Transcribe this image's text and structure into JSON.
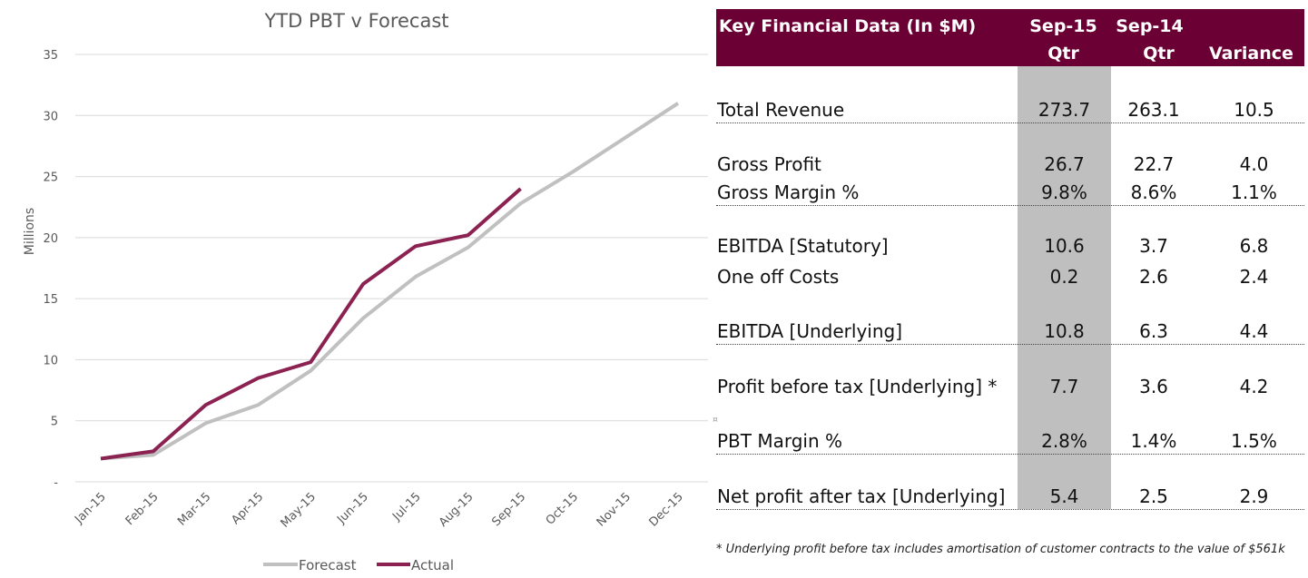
{
  "chart_data": {
    "type": "line",
    "title": "YTD PBT v Forecast",
    "ylabel": "Millions",
    "xlabel": "",
    "categories": [
      "Jan-15",
      "Feb-15",
      "Mar-15",
      "Apr-15",
      "May-15",
      "Jun-15",
      "Jul-15",
      "Aug-15",
      "Sep-15",
      "Oct-15",
      "Nov-15",
      "Dec-15"
    ],
    "ylim": [
      0,
      35
    ],
    "yticks": [
      "-",
      "5",
      "10",
      "15",
      "20",
      "25",
      "30",
      "35"
    ],
    "grid": true,
    "legend": "bottom",
    "series": [
      {
        "name": "Forecast",
        "color": "#c0c0c0",
        "values": [
          1.9,
          2.2,
          4.8,
          6.3,
          9.1,
          13.4,
          16.8,
          19.2,
          22.8,
          25.4,
          28.2,
          31.0
        ]
      },
      {
        "name": "Actual",
        "color": "#8b2252",
        "values": [
          1.9,
          2.5,
          6.3,
          8.5,
          9.8,
          16.2,
          19.3,
          20.2,
          24.0,
          null,
          null,
          null
        ]
      }
    ]
  },
  "table": {
    "header": {
      "title": "Key Financial Data (In $M)",
      "col1": [
        "Sep-15",
        "Qtr"
      ],
      "col2": [
        "Sep-14",
        "Qtr"
      ],
      "col3": "Variance"
    },
    "header_color": "#6b0034",
    "rows": [
      {
        "label": "Total Revenue",
        "v1": "273.7",
        "v2": "263.1",
        "v3": "10.5"
      },
      {
        "label": "Gross Profit",
        "v1": "26.7",
        "v2": "22.7",
        "v3": "4.0"
      },
      {
        "label": "Gross Margin %",
        "v1": "9.8%",
        "v2": "8.6%",
        "v3": "1.1%"
      },
      {
        "label": "EBITDA [Statutory]",
        "v1": "10.6",
        "v2": "3.7",
        "v3": "6.8"
      },
      {
        "label": "One off Costs",
        "v1": "0.2",
        "v2": "2.6",
        "v3": "2.4"
      },
      {
        "label": "EBITDA [Underlying]",
        "v1": "10.8",
        "v2": "6.3",
        "v3": "4.4"
      },
      {
        "label": "Profit before tax [Underlying] *",
        "v1": "7.7",
        "v2": "3.6",
        "v3": "4.2"
      },
      {
        "label": "PBT Margin %",
        "v1": "2.8%",
        "v2": "1.4%",
        "v3": "1.5%"
      },
      {
        "label": "Net profit after tax [Underlying]",
        "v1": "5.4",
        "v2": "2.5",
        "v3": "2.9"
      }
    ],
    "footnote": "* Underlying profit before tax includes amortisation of customer contracts to the value of $561k"
  }
}
